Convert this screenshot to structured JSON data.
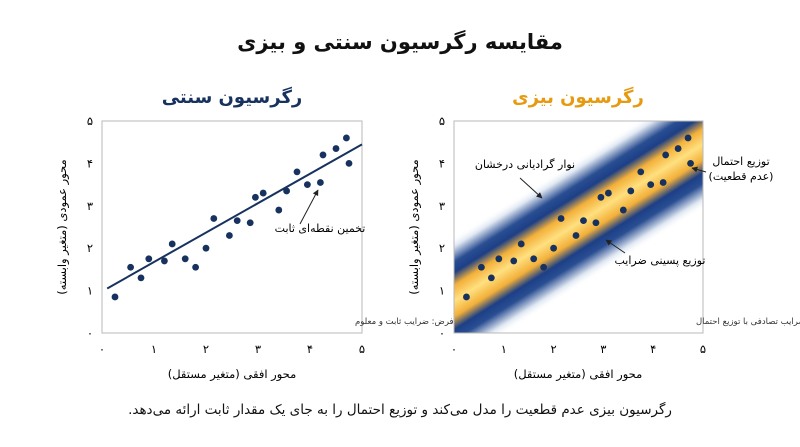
{
  "title": "مقایسه رگرسیون سنتی و بیزی",
  "caption": "رگرسیون بیزی عدم قطعیت را مدل می‌کند و توزیع احتمال را به جای یک مقدار ثابت ارائه می‌دهد.",
  "colors": {
    "navy": "#17325e",
    "orange": "#f0a020",
    "band_edge": "#1c3f86"
  },
  "chart_data": [
    {
      "type": "scatter",
      "title": "رگرسیون سنتی",
      "xlabel": "محور افقی (متغیر مستقل)",
      "ylabel": "محور عمودی (متغیر وابسته)",
      "xlim": [
        0,
        5
      ],
      "ylim": [
        0,
        5
      ],
      "xticks": [
        "۰",
        "۱",
        "۲",
        "۳",
        "۴",
        "۵"
      ],
      "yticks": [
        "۰",
        "۱",
        "۲",
        "۳",
        "۴",
        "۵"
      ],
      "points": [
        [
          0.25,
          0.85
        ],
        [
          0.55,
          1.55
        ],
        [
          0.75,
          1.3
        ],
        [
          0.9,
          1.75
        ],
        [
          1.2,
          1.7
        ],
        [
          1.35,
          2.1
        ],
        [
          1.6,
          1.75
        ],
        [
          1.8,
          1.55
        ],
        [
          2.0,
          2.0
        ],
        [
          2.15,
          2.7
        ],
        [
          2.45,
          2.3
        ],
        [
          2.6,
          2.65
        ],
        [
          2.85,
          2.6
        ],
        [
          2.95,
          3.2
        ],
        [
          3.1,
          3.3
        ],
        [
          3.4,
          2.9
        ],
        [
          3.55,
          3.35
        ],
        [
          3.75,
          3.8
        ],
        [
          3.95,
          3.5
        ],
        [
          4.2,
          3.55
        ],
        [
          4.25,
          4.2
        ],
        [
          4.5,
          4.35
        ],
        [
          4.7,
          4.6
        ],
        [
          4.75,
          4.0
        ]
      ],
      "fit_line": {
        "x": [
          0.1,
          5.0
        ],
        "y": [
          1.05,
          4.45
        ]
      },
      "annotation": "تخمین نقطه‌ای ثابت",
      "note": "فرض: ضرایب ثابت و معلوم"
    },
    {
      "type": "scatter",
      "title": "رگرسیون بیزی",
      "xlabel": "محور افقی (متغیر مستقل)",
      "ylabel": "محور عمودی (متغیر وابسته)",
      "xlim": [
        0,
        5
      ],
      "ylim": [
        0,
        5
      ],
      "xticks": [
        "۰",
        "۱",
        "۲",
        "۳",
        "۴",
        "۵"
      ],
      "yticks": [
        "۰",
        "۱",
        "۲",
        "۳",
        "۴",
        "۵"
      ],
      "points": [
        [
          0.25,
          0.85
        ],
        [
          0.55,
          1.55
        ],
        [
          0.75,
          1.3
        ],
        [
          0.9,
          1.75
        ],
        [
          1.2,
          1.7
        ],
        [
          1.35,
          2.1
        ],
        [
          1.6,
          1.75
        ],
        [
          1.8,
          1.55
        ],
        [
          2.0,
          2.0
        ],
        [
          2.15,
          2.7
        ],
        [
          2.45,
          2.3
        ],
        [
          2.6,
          2.65
        ],
        [
          2.85,
          2.6
        ],
        [
          2.95,
          3.2
        ],
        [
          3.1,
          3.3
        ],
        [
          3.4,
          2.9
        ],
        [
          3.55,
          3.35
        ],
        [
          3.75,
          3.8
        ],
        [
          3.95,
          3.5
        ],
        [
          4.2,
          3.55
        ],
        [
          4.25,
          4.2
        ],
        [
          4.5,
          4.35
        ],
        [
          4.7,
          4.6
        ],
        [
          4.75,
          4.0
        ]
      ],
      "band_center": {
        "x": [
          0.0,
          5.0
        ],
        "y": [
          0.75,
          4.45
        ]
      },
      "annotations": [
        "نوار گرادیانی درخشان",
        "توزیع احتمال",
        "(عدم قطعیت)",
        "توزیع پسینی ضرایب"
      ],
      "note": "فرض: ضرایب تصادفی با توزیع احتمال"
    }
  ]
}
